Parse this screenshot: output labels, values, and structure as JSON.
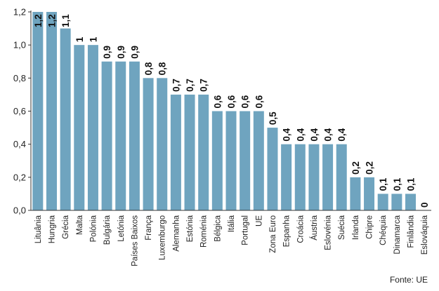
{
  "chart_data": {
    "type": "bar",
    "categories": [
      "Lituânia",
      "Hungria",
      "Grécia",
      "Malta",
      "Polónia",
      "Bulgária",
      "Letónia",
      "Países Baixos",
      "França",
      "Luxemburgo",
      "Alemanha",
      "Estónia",
      "Roménia",
      "Bélgica",
      "Itália",
      "Portugal",
      "UE",
      "Zona Euro",
      "Espanha",
      "Croácia",
      "Áustria",
      "Eslovénia",
      "Suécia",
      "Irlanda",
      "Chipre",
      "Chéquia",
      "Dinamarca",
      "Finlândia",
      "Eslováquia"
    ],
    "values": [
      1.2,
      1.2,
      1.1,
      1,
      1,
      0.9,
      0.9,
      0.9,
      0.8,
      0.8,
      0.7,
      0.7,
      0.7,
      0.6,
      0.6,
      0.6,
      0.6,
      0.5,
      0.4,
      0.4,
      0.4,
      0.4,
      0.4,
      0.2,
      0.2,
      0.1,
      0.1,
      0.1,
      0
    ],
    "value_labels": [
      "1,2",
      "1,2",
      "1,1",
      "1",
      "1",
      "0,9",
      "0,9",
      "0,9",
      "0,8",
      "0,8",
      "0,7",
      "0,7",
      "0,7",
      "0,6",
      "0,6",
      "0,6",
      "0,6",
      "0,5",
      "0,4",
      "0,4",
      "0,4",
      "0,4",
      "0,4",
      "0,2",
      "0,2",
      "0,1",
      "0,1",
      "0,1",
      "0"
    ],
    "y_ticks": [
      "0,0",
      "0,2",
      "0,4",
      "0,6",
      "0,8",
      "1,0",
      "1,2"
    ],
    "ylim": [
      0,
      1.2
    ],
    "grid": false,
    "bar_color": "#6fa4bf",
    "axis_color": "#333333"
  },
  "source": "Fonte: UE"
}
